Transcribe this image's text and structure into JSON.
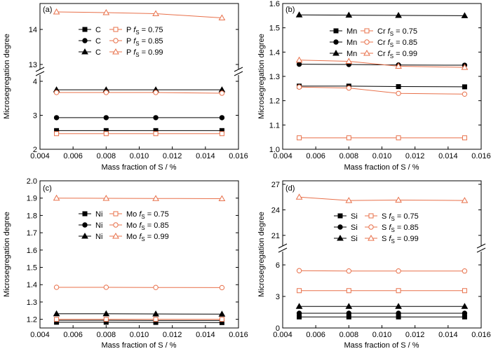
{
  "colors": {
    "black": "#000000",
    "orange": "#e8704a"
  },
  "chart_data": [
    {
      "type": "line",
      "panel_label": "(a)",
      "xlabel": "Mass fraction of S / %",
      "ylabel": "Microsegregation degree",
      "xlim": [
        0.004,
        0.016
      ],
      "x_ticks": [
        "0.004",
        "0.006",
        "0.008",
        "0.010",
        "0.012",
        "0.014",
        "0.016"
      ],
      "y_axis_break": true,
      "y_segments": [
        {
          "range": [
            2,
            4
          ],
          "ticks": [
            "2",
            "3",
            "4"
          ]
        },
        {
          "range": [
            13,
            14.5
          ],
          "ticks": [
            "13",
            "14"
          ]
        }
      ],
      "legend": {
        "rows": [
          {
            "left": "C",
            "right": "P",
            "fs": "0.75"
          },
          {
            "left": "C",
            "right": "P",
            "fs": "0.85"
          },
          {
            "left": "C",
            "right": "P",
            "fs": "0.99"
          }
        ]
      },
      "x": [
        0.005,
        0.008,
        0.011,
        0.015
      ],
      "series": [
        {
          "element": "C",
          "fs": "0.75",
          "color": "black",
          "marker": "square",
          "filled": true,
          "values": [
            2.55,
            2.55,
            2.55,
            2.55
          ]
        },
        {
          "element": "C",
          "fs": "0.85",
          "color": "black",
          "marker": "circle",
          "filled": true,
          "values": [
            2.93,
            2.93,
            2.93,
            2.93
          ]
        },
        {
          "element": "C",
          "fs": "0.99",
          "color": "black",
          "marker": "triangle",
          "filled": true,
          "values": [
            3.75,
            3.75,
            3.75,
            3.75
          ]
        },
        {
          "element": "P",
          "fs": "0.75",
          "color": "orange",
          "marker": "square",
          "filled": false,
          "values": [
            2.46,
            2.46,
            2.46,
            2.46
          ]
        },
        {
          "element": "P",
          "fs": "0.85",
          "color": "orange",
          "marker": "circle",
          "filled": false,
          "values": [
            3.67,
            3.67,
            3.67,
            3.65
          ]
        },
        {
          "element": "P",
          "fs": "0.99",
          "color": "orange",
          "marker": "triangle",
          "filled": false,
          "values": [
            14.5,
            14.48,
            14.45,
            14.33
          ]
        }
      ]
    },
    {
      "type": "line",
      "panel_label": "(b)",
      "xlabel": "Mass fraction of S / %",
      "ylabel": "Microsegregation degree",
      "xlim": [
        0.004,
        0.016
      ],
      "x_ticks": [
        "0.004",
        "0.006",
        "0.008",
        "0.010",
        "0.012",
        "0.014",
        "0.016"
      ],
      "ylim": [
        1.0,
        1.6
      ],
      "y_ticks": [
        "1.0",
        "1.1",
        "1.2",
        "1.3",
        "1.4",
        "1.5",
        "1.6"
      ],
      "legend": {
        "rows": [
          {
            "left": "Mn",
            "right": "Cr",
            "fs": "0.75"
          },
          {
            "left": "Mn",
            "right": "Cr",
            "fs": "0.85"
          },
          {
            "left": "Mn",
            "right": "Cr",
            "fs": "0.99"
          }
        ]
      },
      "x": [
        0.005,
        0.008,
        0.011,
        0.015
      ],
      "series": [
        {
          "element": "Mn",
          "fs": "0.75",
          "color": "black",
          "marker": "square",
          "filled": true,
          "values": [
            1.26,
            1.26,
            1.258,
            1.257
          ]
        },
        {
          "element": "Mn",
          "fs": "0.85",
          "color": "black",
          "marker": "circle",
          "filled": true,
          "values": [
            1.35,
            1.349,
            1.347,
            1.346
          ]
        },
        {
          "element": "Mn",
          "fs": "0.99",
          "color": "black",
          "marker": "triangle",
          "filled": true,
          "values": [
            1.553,
            1.552,
            1.551,
            1.55
          ]
        },
        {
          "element": "Cr",
          "fs": "0.75",
          "color": "orange",
          "marker": "square",
          "filled": false,
          "values": [
            1.047,
            1.047,
            1.047,
            1.047
          ]
        },
        {
          "element": "Cr",
          "fs": "0.85",
          "color": "orange",
          "marker": "circle",
          "filled": false,
          "values": [
            1.256,
            1.252,
            1.23,
            1.227
          ]
        },
        {
          "element": "Cr",
          "fs": "0.99",
          "color": "orange",
          "marker": "triangle",
          "filled": false,
          "values": [
            1.367,
            1.362,
            1.342,
            1.337
          ]
        }
      ]
    },
    {
      "type": "line",
      "panel_label": "(c)",
      "xlabel": "Mass fraction of S / %",
      "ylabel": "Microsegregation degree",
      "xlim": [
        0.004,
        0.016
      ],
      "x_ticks": [
        "0.004",
        "0.006",
        "0.008",
        "0.010",
        "0.012",
        "0.014",
        "0.016"
      ],
      "ylim": [
        1.15,
        2.0
      ],
      "y_ticks": [
        "1.2",
        "1.3",
        "1.4",
        "1.5",
        "1.6",
        "1.7",
        "1.8",
        "1.9",
        "2.0"
      ],
      "legend": {
        "rows": [
          {
            "left": "Ni",
            "right": "Mo",
            "fs": "0.75"
          },
          {
            "left": "Ni",
            "right": "Mo",
            "fs": "0.85"
          },
          {
            "left": "Ni",
            "right": "Mo",
            "fs": "0.99"
          }
        ]
      },
      "x": [
        0.005,
        0.008,
        0.011,
        0.015
      ],
      "series": [
        {
          "element": "Ni",
          "fs": "0.75",
          "color": "black",
          "marker": "square",
          "filled": true,
          "values": [
            1.183,
            1.183,
            1.182,
            1.181
          ]
        },
        {
          "element": "Ni",
          "fs": "0.85",
          "color": "black",
          "marker": "circle",
          "filled": true,
          "values": [
            1.194,
            1.194,
            1.193,
            1.193
          ]
        },
        {
          "element": "Ni",
          "fs": "0.99",
          "color": "black",
          "marker": "triangle",
          "filled": true,
          "values": [
            1.232,
            1.232,
            1.231,
            1.23
          ]
        },
        {
          "element": "Mo",
          "fs": "0.75",
          "color": "orange",
          "marker": "square",
          "filled": false,
          "values": [
            1.2,
            1.2,
            1.2,
            1.2
          ]
        },
        {
          "element": "Mo",
          "fs": "0.85",
          "color": "orange",
          "marker": "circle",
          "filled": false,
          "values": [
            1.385,
            1.385,
            1.384,
            1.383
          ]
        },
        {
          "element": "Mo",
          "fs": "0.99",
          "color": "orange",
          "marker": "triangle",
          "filled": false,
          "values": [
            1.9,
            1.899,
            1.898,
            1.897
          ]
        }
      ]
    },
    {
      "type": "line",
      "panel_label": "(d)",
      "xlabel": "Mass fraction of S / %",
      "ylabel": "Microsegregation degree",
      "xlim": [
        0.004,
        0.016
      ],
      "x_ticks": [
        "0.004",
        "0.006",
        "0.008",
        "0.010",
        "0.012",
        "0.014",
        "0.016"
      ],
      "y_axis_break": true,
      "y_segments": [
        {
          "range": [
            0,
            7
          ],
          "ticks": [
            "0",
            "3",
            "6"
          ]
        },
        {
          "range": [
            20,
            27
          ],
          "ticks": [
            "21",
            "24",
            "27"
          ]
        }
      ],
      "legend": {
        "rows": [
          {
            "left": "Si",
            "right": "S",
            "fs": "0.75"
          },
          {
            "left": "Si",
            "right": "S",
            "fs": "0.85"
          },
          {
            "left": "Si",
            "right": "S",
            "fs": "0.99"
          }
        ]
      },
      "x": [
        0.005,
        0.008,
        0.011,
        0.015
      ],
      "series": [
        {
          "element": "Si",
          "fs": "0.75",
          "color": "black",
          "marker": "square",
          "filled": true,
          "values": [
            1.05,
            1.05,
            1.05,
            1.05
          ]
        },
        {
          "element": "Si",
          "fs": "0.85",
          "color": "black",
          "marker": "circle",
          "filled": true,
          "values": [
            1.4,
            1.4,
            1.4,
            1.4
          ]
        },
        {
          "element": "Si",
          "fs": "0.99",
          "color": "black",
          "marker": "triangle",
          "filled": true,
          "values": [
            2.05,
            2.05,
            2.05,
            2.05
          ]
        },
        {
          "element": "S",
          "fs": "0.75",
          "color": "orange",
          "marker": "square",
          "filled": false,
          "values": [
            3.55,
            3.55,
            3.55,
            3.55
          ]
        },
        {
          "element": "S",
          "fs": "0.85",
          "color": "orange",
          "marker": "circle",
          "filled": false,
          "values": [
            5.45,
            5.42,
            5.42,
            5.42
          ]
        },
        {
          "element": "S",
          "fs": "0.99",
          "color": "orange",
          "marker": "triangle",
          "filled": false,
          "values": [
            25.5,
            25.1,
            25.15,
            25.1
          ]
        }
      ]
    }
  ]
}
